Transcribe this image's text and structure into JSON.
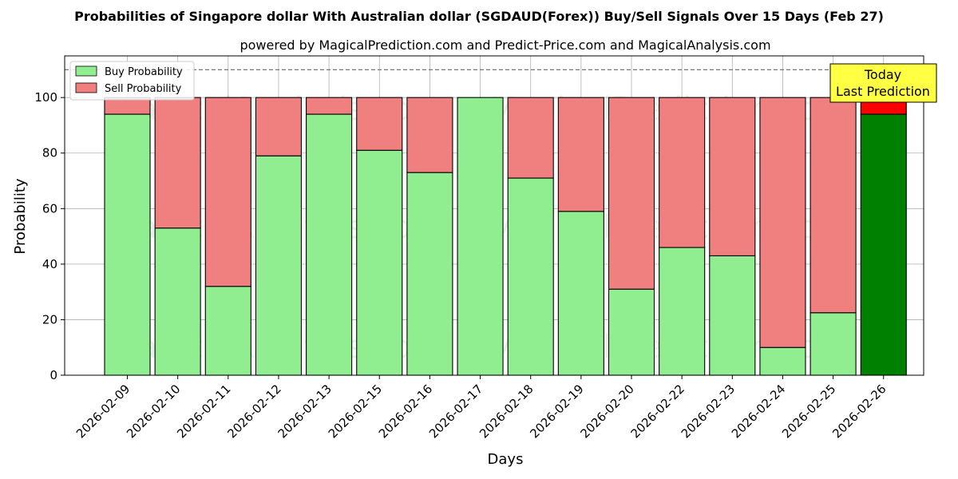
{
  "chart_data": {
    "type": "bar",
    "stacked": true,
    "title": "Probabilities of Singapore dollar With Australian dollar (SGDAUD(Forex)) Buy/Sell Signals Over 15 Days (Feb 27)",
    "subtitle": "powered by MagicalPrediction.com and Predict-Price.com and MagicalAnalysis.com",
    "xlabel": "Days",
    "ylabel": "Probability",
    "ylim": [
      0,
      115
    ],
    "yticks": [
      0,
      20,
      40,
      60,
      80,
      100
    ],
    "grid": true,
    "reference_line": 110,
    "legend_position": "top-left",
    "categories": [
      "2026-02-09",
      "2026-02-10",
      "2026-02-11",
      "2026-02-12",
      "2026-02-13",
      "2026-02-15",
      "2026-02-16",
      "2026-02-17",
      "2026-02-18",
      "2026-02-19",
      "2026-02-20",
      "2026-02-22",
      "2026-02-23",
      "2026-02-24",
      "2026-02-25",
      "2026-02-26"
    ],
    "series": [
      {
        "name": "Buy Probability",
        "color": "#90ee90",
        "highlight_color": "#008000",
        "values": [
          94,
          53,
          32,
          79,
          94,
          81,
          73,
          100,
          71,
          59,
          31,
          46,
          43,
          10,
          22.5,
          94
        ]
      },
      {
        "name": "Sell Probability",
        "color": "#f08080",
        "highlight_color": "#ff0000",
        "values": [
          6,
          47,
          68,
          21,
          6,
          19,
          27,
          0,
          29,
          41,
          69,
          54,
          57,
          90,
          77.5,
          6
        ]
      }
    ],
    "highlight_index": 15,
    "annotation": {
      "line1": "Today",
      "line2": "Last Prediction",
      "color": "#ffff44"
    },
    "watermarks": [
      "MagicalAnalysis.com",
      "MagicalPrediction.com"
    ]
  }
}
